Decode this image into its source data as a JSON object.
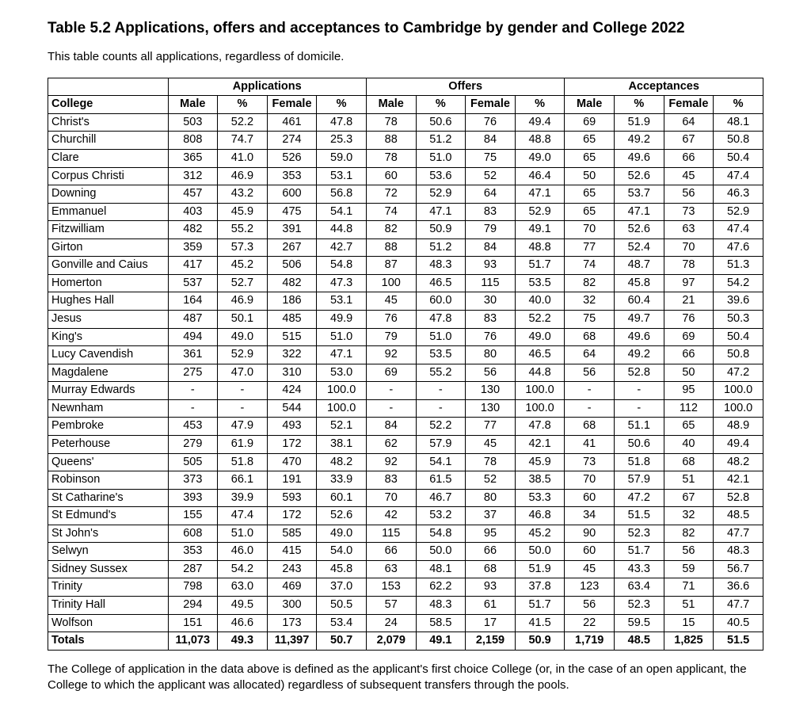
{
  "title": "Table 5.2 Applications, offers and acceptances to Cambridge by gender and College 2022",
  "subtitle": "This table counts all applications, regardless of domicile.",
  "groupHeaders": [
    "Applications",
    "Offers",
    "Acceptances"
  ],
  "subHeaders": {
    "college": "College",
    "male": "Male",
    "pct": "%",
    "female": "Female"
  },
  "rows": [
    {
      "college": "Christ's",
      "am": "503",
      "amp": "52.2",
      "af": "461",
      "afp": "47.8",
      "om": "78",
      "omp": "50.6",
      "of": "76",
      "ofp": "49.4",
      "cm": "69",
      "cmp": "51.9",
      "cf": "64",
      "cfp": "48.1"
    },
    {
      "college": "Churchill",
      "am": "808",
      "amp": "74.7",
      "af": "274",
      "afp": "25.3",
      "om": "88",
      "omp": "51.2",
      "of": "84",
      "ofp": "48.8",
      "cm": "65",
      "cmp": "49.2",
      "cf": "67",
      "cfp": "50.8"
    },
    {
      "college": "Clare",
      "am": "365",
      "amp": "41.0",
      "af": "526",
      "afp": "59.0",
      "om": "78",
      "omp": "51.0",
      "of": "75",
      "ofp": "49.0",
      "cm": "65",
      "cmp": "49.6",
      "cf": "66",
      "cfp": "50.4"
    },
    {
      "college": "Corpus Christi",
      "am": "312",
      "amp": "46.9",
      "af": "353",
      "afp": "53.1",
      "om": "60",
      "omp": "53.6",
      "of": "52",
      "ofp": "46.4",
      "cm": "50",
      "cmp": "52.6",
      "cf": "45",
      "cfp": "47.4"
    },
    {
      "college": "Downing",
      "am": "457",
      "amp": "43.2",
      "af": "600",
      "afp": "56.8",
      "om": "72",
      "omp": "52.9",
      "of": "64",
      "ofp": "47.1",
      "cm": "65",
      "cmp": "53.7",
      "cf": "56",
      "cfp": "46.3"
    },
    {
      "college": "Emmanuel",
      "am": "403",
      "amp": "45.9",
      "af": "475",
      "afp": "54.1",
      "om": "74",
      "omp": "47.1",
      "of": "83",
      "ofp": "52.9",
      "cm": "65",
      "cmp": "47.1",
      "cf": "73",
      "cfp": "52.9"
    },
    {
      "college": "Fitzwilliam",
      "am": "482",
      "amp": "55.2",
      "af": "391",
      "afp": "44.8",
      "om": "82",
      "omp": "50.9",
      "of": "79",
      "ofp": "49.1",
      "cm": "70",
      "cmp": "52.6",
      "cf": "63",
      "cfp": "47.4"
    },
    {
      "college": "Girton",
      "am": "359",
      "amp": "57.3",
      "af": "267",
      "afp": "42.7",
      "om": "88",
      "omp": "51.2",
      "of": "84",
      "ofp": "48.8",
      "cm": "77",
      "cmp": "52.4",
      "cf": "70",
      "cfp": "47.6"
    },
    {
      "college": "Gonville and Caius",
      "am": "417",
      "amp": "45.2",
      "af": "506",
      "afp": "54.8",
      "om": "87",
      "omp": "48.3",
      "of": "93",
      "ofp": "51.7",
      "cm": "74",
      "cmp": "48.7",
      "cf": "78",
      "cfp": "51.3"
    },
    {
      "college": "Homerton",
      "am": "537",
      "amp": "52.7",
      "af": "482",
      "afp": "47.3",
      "om": "100",
      "omp": "46.5",
      "of": "115",
      "ofp": "53.5",
      "cm": "82",
      "cmp": "45.8",
      "cf": "97",
      "cfp": "54.2"
    },
    {
      "college": "Hughes Hall",
      "am": "164",
      "amp": "46.9",
      "af": "186",
      "afp": "53.1",
      "om": "45",
      "omp": "60.0",
      "of": "30",
      "ofp": "40.0",
      "cm": "32",
      "cmp": "60.4",
      "cf": "21",
      "cfp": "39.6"
    },
    {
      "college": "Jesus",
      "am": "487",
      "amp": "50.1",
      "af": "485",
      "afp": "49.9",
      "om": "76",
      "omp": "47.8",
      "of": "83",
      "ofp": "52.2",
      "cm": "75",
      "cmp": "49.7",
      "cf": "76",
      "cfp": "50.3"
    },
    {
      "college": "King's",
      "am": "494",
      "amp": "49.0",
      "af": "515",
      "afp": "51.0",
      "om": "79",
      "omp": "51.0",
      "of": "76",
      "ofp": "49.0",
      "cm": "68",
      "cmp": "49.6",
      "cf": "69",
      "cfp": "50.4"
    },
    {
      "college": "Lucy Cavendish",
      "am": "361",
      "amp": "52.9",
      "af": "322",
      "afp": "47.1",
      "om": "92",
      "omp": "53.5",
      "of": "80",
      "ofp": "46.5",
      "cm": "64",
      "cmp": "49.2",
      "cf": "66",
      "cfp": "50.8"
    },
    {
      "college": "Magdalene",
      "am": "275",
      "amp": "47.0",
      "af": "310",
      "afp": "53.0",
      "om": "69",
      "omp": "55.2",
      "of": "56",
      "ofp": "44.8",
      "cm": "56",
      "cmp": "52.8",
      "cf": "50",
      "cfp": "47.2"
    },
    {
      "college": "Murray Edwards",
      "am": "-",
      "amp": "-",
      "af": "424",
      "afp": "100.0",
      "om": "-",
      "omp": "-",
      "of": "130",
      "ofp": "100.0",
      "cm": "-",
      "cmp": "-",
      "cf": "95",
      "cfp": "100.0"
    },
    {
      "college": "Newnham",
      "am": "-",
      "amp": "-",
      "af": "544",
      "afp": "100.0",
      "om": "-",
      "omp": "-",
      "of": "130",
      "ofp": "100.0",
      "cm": "-",
      "cmp": "-",
      "cf": "112",
      "cfp": "100.0"
    },
    {
      "college": "Pembroke",
      "am": "453",
      "amp": "47.9",
      "af": "493",
      "afp": "52.1",
      "om": "84",
      "omp": "52.2",
      "of": "77",
      "ofp": "47.8",
      "cm": "68",
      "cmp": "51.1",
      "cf": "65",
      "cfp": "48.9"
    },
    {
      "college": "Peterhouse",
      "am": "279",
      "amp": "61.9",
      "af": "172",
      "afp": "38.1",
      "om": "62",
      "omp": "57.9",
      "of": "45",
      "ofp": "42.1",
      "cm": "41",
      "cmp": "50.6",
      "cf": "40",
      "cfp": "49.4"
    },
    {
      "college": "Queens'",
      "am": "505",
      "amp": "51.8",
      "af": "470",
      "afp": "48.2",
      "om": "92",
      "omp": "54.1",
      "of": "78",
      "ofp": "45.9",
      "cm": "73",
      "cmp": "51.8",
      "cf": "68",
      "cfp": "48.2"
    },
    {
      "college": "Robinson",
      "am": "373",
      "amp": "66.1",
      "af": "191",
      "afp": "33.9",
      "om": "83",
      "omp": "61.5",
      "of": "52",
      "ofp": "38.5",
      "cm": "70",
      "cmp": "57.9",
      "cf": "51",
      "cfp": "42.1"
    },
    {
      "college": "St Catharine's",
      "am": "393",
      "amp": "39.9",
      "af": "593",
      "afp": "60.1",
      "om": "70",
      "omp": "46.7",
      "of": "80",
      "ofp": "53.3",
      "cm": "60",
      "cmp": "47.2",
      "cf": "67",
      "cfp": "52.8"
    },
    {
      "college": "St Edmund's",
      "am": "155",
      "amp": "47.4",
      "af": "172",
      "afp": "52.6",
      "om": "42",
      "omp": "53.2",
      "of": "37",
      "ofp": "46.8",
      "cm": "34",
      "cmp": "51.5",
      "cf": "32",
      "cfp": "48.5"
    },
    {
      "college": "St John's",
      "am": "608",
      "amp": "51.0",
      "af": "585",
      "afp": "49.0",
      "om": "115",
      "omp": "54.8",
      "of": "95",
      "ofp": "45.2",
      "cm": "90",
      "cmp": "52.3",
      "cf": "82",
      "cfp": "47.7"
    },
    {
      "college": "Selwyn",
      "am": "353",
      "amp": "46.0",
      "af": "415",
      "afp": "54.0",
      "om": "66",
      "omp": "50.0",
      "of": "66",
      "ofp": "50.0",
      "cm": "60",
      "cmp": "51.7",
      "cf": "56",
      "cfp": "48.3"
    },
    {
      "college": "Sidney Sussex",
      "am": "287",
      "amp": "54.2",
      "af": "243",
      "afp": "45.8",
      "om": "63",
      "omp": "48.1",
      "of": "68",
      "ofp": "51.9",
      "cm": "45",
      "cmp": "43.3",
      "cf": "59",
      "cfp": "56.7"
    },
    {
      "college": "Trinity",
      "am": "798",
      "amp": "63.0",
      "af": "469",
      "afp": "37.0",
      "om": "153",
      "omp": "62.2",
      "of": "93",
      "ofp": "37.8",
      "cm": "123",
      "cmp": "63.4",
      "cf": "71",
      "cfp": "36.6"
    },
    {
      "college": "Trinity Hall",
      "am": "294",
      "amp": "49.5",
      "af": "300",
      "afp": "50.5",
      "om": "57",
      "omp": "48.3",
      "of": "61",
      "ofp": "51.7",
      "cm": "56",
      "cmp": "52.3",
      "cf": "51",
      "cfp": "47.7"
    },
    {
      "college": "Wolfson",
      "am": "151",
      "amp": "46.6",
      "af": "173",
      "afp": "53.4",
      "om": "24",
      "omp": "58.5",
      "of": "17",
      "ofp": "41.5",
      "cm": "22",
      "cmp": "59.5",
      "cf": "15",
      "cfp": "40.5"
    }
  ],
  "totals": {
    "college": "Totals",
    "am": "11,073",
    "amp": "49.3",
    "af": "11,397",
    "afp": "50.7",
    "om": "2,079",
    "omp": "49.1",
    "of": "2,159",
    "ofp": "50.9",
    "cm": "1,719",
    "cmp": "48.5",
    "cf": "1,825",
    "cfp": "51.5"
  },
  "footnote": "The College of application in the data above is defined as the applicant's first choice College (or, in the case of an open applicant, the College to which the applicant was allocated) regardless of subsequent transfers through the pools."
}
